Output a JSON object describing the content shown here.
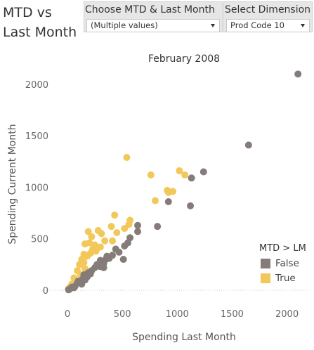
{
  "title": "MTD vs Last Month",
  "filters": {
    "month": {
      "label": "Choose MTD & Last Month",
      "value": "(Multiple values)"
    },
    "dimension": {
      "label": "Select Dimension",
      "value": "Prod Code 10"
    }
  },
  "colors": {
    "false": "#857b79",
    "true": "#f2c85b"
  },
  "chart_data": {
    "type": "scatter",
    "title": "February 2008",
    "xlabel": "Spending Last Month",
    "ylabel": "Spending Current Month",
    "xlim": [
      0,
      2150
    ],
    "ylim": [
      0,
      2150
    ],
    "xticks": [
      0,
      500,
      1000,
      1500,
      2000
    ],
    "yticks": [
      0,
      500,
      1000,
      1500,
      2000
    ],
    "legend": {
      "title": "MTD > LM",
      "placement": "right",
      "entries": [
        "False",
        "True"
      ]
    },
    "series": [
      {
        "name": "False",
        "points": [
          [
            2100,
            2100
          ],
          [
            1650,
            1410
          ],
          [
            1240,
            1150
          ],
          [
            1130,
            1090
          ],
          [
            1120,
            820
          ],
          [
            920,
            860
          ],
          [
            820,
            620
          ],
          [
            640,
            630
          ],
          [
            640,
            570
          ],
          [
            570,
            510
          ],
          [
            550,
            460
          ],
          [
            520,
            430
          ],
          [
            470,
            370
          ],
          [
            510,
            300
          ],
          [
            410,
            340
          ],
          [
            380,
            310
          ],
          [
            350,
            300
          ],
          [
            300,
            290
          ],
          [
            330,
            260
          ],
          [
            300,
            230
          ],
          [
            250,
            220
          ],
          [
            220,
            190
          ],
          [
            190,
            170
          ],
          [
            180,
            130
          ],
          [
            150,
            150
          ],
          [
            140,
            110
          ],
          [
            100,
            90
          ],
          [
            90,
            70
          ],
          [
            70,
            40
          ],
          [
            40,
            30
          ],
          [
            20,
            10
          ],
          [
            10,
            5
          ],
          [
            130,
            60
          ],
          [
            210,
            160
          ],
          [
            270,
            250
          ],
          [
            360,
            330
          ],
          [
            440,
            400
          ],
          [
            60,
            25
          ],
          [
            160,
            100
          ],
          [
            330,
            220
          ]
        ]
      },
      {
        "name": "True",
        "points": [
          [
            540,
            1290
          ],
          [
            1020,
            1160
          ],
          [
            1070,
            1120
          ],
          [
            760,
            1120
          ],
          [
            910,
            970
          ],
          [
            960,
            960
          ],
          [
            920,
            950
          ],
          [
            800,
            870
          ],
          [
            570,
            680
          ],
          [
            560,
            640
          ],
          [
            430,
            730
          ],
          [
            400,
            620
          ],
          [
            520,
            600
          ],
          [
            450,
            560
          ],
          [
            280,
            580
          ],
          [
            190,
            570
          ],
          [
            310,
            550
          ],
          [
            410,
            480
          ],
          [
            220,
            520
          ],
          [
            340,
            480
          ],
          [
            200,
            460
          ],
          [
            250,
            440
          ],
          [
            160,
            450
          ],
          [
            300,
            420
          ],
          [
            230,
            400
          ],
          [
            260,
            380
          ],
          [
            210,
            360
          ],
          [
            150,
            350
          ],
          [
            180,
            330
          ],
          [
            130,
            300
          ],
          [
            150,
            270
          ],
          [
            110,
            250
          ],
          [
            160,
            210
          ],
          [
            90,
            190
          ],
          [
            120,
            150
          ],
          [
            60,
            120
          ],
          [
            70,
            80
          ],
          [
            40,
            60
          ],
          [
            20,
            30
          ],
          [
            10,
            15
          ]
        ]
      }
    ]
  }
}
